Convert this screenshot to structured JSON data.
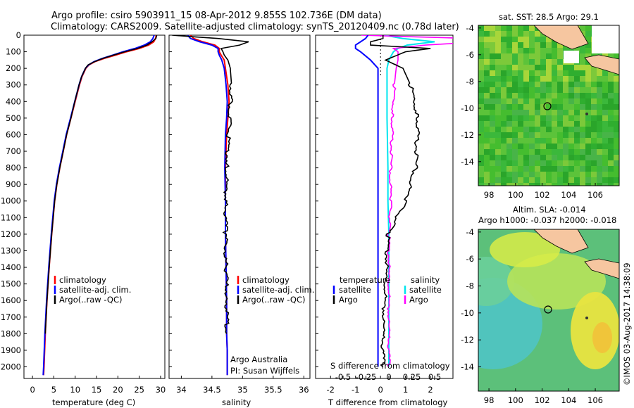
{
  "header": {
    "title_line1": "Argo profile: csiro 5903911_15 08-Apr-2012 9.855S 102.736E (DM data)",
    "title_line2": "Climatology: CARS2009. Satellite-adjusted climatology: synTS_20120409.nc (0.78d later)"
  },
  "depth_axis": {
    "ticks": [
      0,
      100,
      200,
      300,
      400,
      500,
      600,
      700,
      800,
      900,
      1000,
      1100,
      1200,
      1300,
      1400,
      1500,
      1600,
      1700,
      1800,
      1900,
      2000
    ],
    "range": [
      0,
      2070
    ]
  },
  "panels": {
    "temperature": {
      "xlabel": "temperature (deg C)",
      "ticks": [
        "0",
        "5",
        "10",
        "15",
        "20",
        "25",
        "30"
      ],
      "legend": [
        "climatology",
        "satellite-adj. clim.",
        "Argo(..raw -QC)"
      ]
    },
    "salinity": {
      "xlabel": "salinity",
      "ticks": [
        "34",
        "34.5",
        "35",
        "35.5",
        "36"
      ],
      "legend": [
        "climatology",
        "satellite-adj. clim.",
        "Argo(..raw -QC)"
      ],
      "credit_line1": "Argo Australia",
      "credit_line2": "PI: Susan Wijffels"
    },
    "difference": {
      "xlabel_top": "S difference from climatology",
      "s_ticks": [
        "-0.5",
        "-0.25",
        "0",
        "0.25",
        "0.5"
      ],
      "xlabel_bottom": "T difference from climatology",
      "t_ticks": [
        "-2",
        "-1",
        "0",
        "1",
        "2"
      ],
      "legend_temp_head": "temperature",
      "legend_sal_head": "salinity",
      "legend_temp": [
        "satellite",
        "Argo"
      ],
      "legend_sal": [
        "satellite",
        "Argo"
      ]
    }
  },
  "maps": {
    "sst_title": "sat. SST: 28.5  Argo: 29.1",
    "sla_title1": "Altim. SLA: -0.014",
    "sla_title2": "Argo h1000: -0.037 h2000: -0.018",
    "lat_ticks": [
      "-4",
      "-6",
      "-8",
      "-10",
      "-12",
      "-14"
    ],
    "lon_ticks": [
      "98",
      "100",
      "102",
      "104",
      "106"
    ],
    "float_position": {
      "lon": 102.736,
      "lat": -9.855
    }
  },
  "footer": {
    "stamp": "©IMOS 03-Aug-2017 14:38:09"
  },
  "colors": {
    "climatology": "#ff0000",
    "satellite": "#0000ff",
    "argo": "#000000",
    "sal_satellite": "#00e5ee",
    "sal_argo": "#ff00ff",
    "land": "#f6c6a0"
  },
  "chart_data": [
    {
      "type": "line",
      "xlabel": "temperature (deg C)",
      "xlim": [
        -2,
        31
      ],
      "ylim": [
        2070,
        0
      ],
      "depth": [
        0,
        20,
        40,
        60,
        80,
        100,
        120,
        140,
        160,
        180,
        200,
        250,
        300,
        400,
        500,
        600,
        700,
        800,
        900,
        1000,
        1200,
        1400,
        1600,
        1800,
        2000,
        2050
      ],
      "series": [
        {
          "name": "climatology",
          "values": [
            29.0,
            28.8,
            28.4,
            27.2,
            25.0,
            22.0,
            19.5,
            16.8,
            14.6,
            13.2,
            12.5,
            11.6,
            11.0,
            10.0,
            9.0,
            8.0,
            7.2,
            6.4,
            5.7,
            5.2,
            4.5,
            3.9,
            3.4,
            3.0,
            2.7,
            2.6
          ]
        },
        {
          "name": "satellite-adj. clim.",
          "values": [
            28.5,
            28.2,
            27.6,
            26.2,
            24.0,
            21.2,
            18.8,
            16.4,
            14.4,
            13.1,
            12.4,
            11.5,
            10.9,
            9.9,
            8.9,
            7.9,
            7.1,
            6.3,
            5.6,
            5.1,
            4.4,
            3.8,
            3.3,
            2.9,
            2.6,
            2.5
          ]
        },
        {
          "name": "Argo(..raw -QC)",
          "values": [
            29.1,
            28.9,
            28.0,
            26.8,
            24.6,
            21.6,
            19.0,
            16.5,
            14.5,
            13.0,
            12.4,
            11.5,
            10.9,
            9.9,
            9.0,
            8.0,
            7.2,
            6.4,
            5.7,
            5.2,
            4.5,
            3.9,
            3.4,
            3.0
          ]
        }
      ]
    },
    {
      "type": "line",
      "xlabel": "salinity",
      "xlim": [
        33.8,
        36.1
      ],
      "ylim": [
        2070,
        0
      ],
      "depth": [
        0,
        20,
        40,
        60,
        80,
        100,
        120,
        150,
        200,
        300,
        400,
        500,
        600,
        800,
        1000,
        1200,
        1400,
        1600,
        1800,
        1900,
        2000,
        2050
      ],
      "series": [
        {
          "name": "climatology",
          "values": [
            34.15,
            34.2,
            34.35,
            34.55,
            34.62,
            34.62,
            34.65,
            34.7,
            34.72,
            34.76,
            34.78,
            34.76,
            34.74,
            34.72,
            34.72,
            34.72,
            34.73,
            34.74,
            34.74,
            34.75,
            34.75,
            34.75
          ]
        },
        {
          "name": "satellite-adj. clim.",
          "values": [
            34.1,
            34.15,
            34.3,
            34.5,
            34.6,
            34.6,
            34.62,
            34.66,
            34.7,
            34.73,
            34.75,
            34.74,
            34.72,
            34.71,
            34.72,
            34.72,
            34.73,
            34.74,
            34.74,
            34.75,
            34.75,
            34.75
          ]
        },
        {
          "name": "Argo(..raw -QC)",
          "values": [
            33.85,
            34.6,
            35.1,
            34.95,
            34.65,
            34.68,
            34.7,
            34.76,
            34.8,
            34.82,
            34.8,
            34.79,
            34.77,
            34.74,
            34.73,
            34.72,
            34.73,
            34.74,
            34.74
          ]
        }
      ]
    },
    {
      "type": "line",
      "xlabel": "T difference from climatology",
      "xlim": [
        -2.6,
        2.9
      ],
      "ylim": [
        2070,
        0
      ],
      "depth": [
        0,
        20,
        40,
        60,
        80,
        100,
        150,
        200,
        300,
        500,
        800,
        1000,
        1200,
        1500,
        1800,
        2000
      ],
      "series": [
        {
          "name": "satellite",
          "values": [
            -0.5,
            -0.6,
            -0.8,
            -1.0,
            -1.0,
            -0.8,
            -0.4,
            -0.1,
            -0.1,
            -0.1,
            -0.1,
            -0.1,
            -0.1,
            -0.1,
            -0.1,
            -0.1
          ]
        },
        {
          "name": "Argo",
          "values": [
            0.1,
            0.1,
            -0.4,
            -0.4,
            2.0,
            1.0,
            0.2,
            0.9,
            1.2,
            1.5,
            1.4,
            1.0,
            0.3,
            0.2,
            0.1,
            0.1
          ]
        }
      ]
    },
    {
      "type": "line",
      "xlabel": "S difference from climatology",
      "xlim": [
        -0.8,
        0.7
      ],
      "ylim": [
        2070,
        0
      ],
      "depth": [
        0,
        20,
        40,
        60,
        80,
        100,
        150,
        200,
        300,
        500,
        800,
        1000,
        1200,
        1500,
        1800,
        2000
      ],
      "series": [
        {
          "name": "satellite",
          "values": [
            -0.05,
            0.15,
            0.5,
            0.2,
            0.1,
            0.05,
            0.0,
            -0.02,
            -0.02,
            -0.02,
            -0.01,
            -0.01,
            0.0,
            0.0,
            0.0,
            0.0
          ]
        },
        {
          "name": "Argo",
          "values": [
            -0.3,
            0.9,
            1.0,
            0.4,
            0.05,
            0.1,
            0.1,
            0.08,
            0.06,
            0.04,
            0.02,
            0.02,
            0.0,
            0.0,
            0.0,
            0.0
          ]
        }
      ]
    }
  ]
}
